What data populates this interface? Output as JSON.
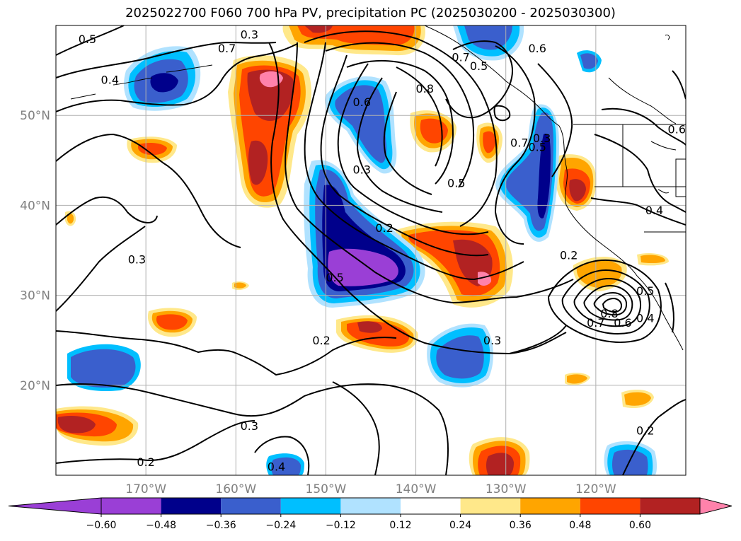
{
  "title": "2025022700 F060 700 hPa PV, precipitation PC (2025030200 - 2025030300)",
  "latitude_labels": [
    "50°N",
    "40°N",
    "30°N",
    "20°N"
  ],
  "longitude_labels": [
    "170°W",
    "160°W",
    "150°W",
    "140°W",
    "130°W",
    "120°W"
  ],
  "contour_labels": [
    {
      "text": "0.5",
      "lon": -176.5,
      "lat": 58.5
    },
    {
      "text": "0.3",
      "lon": -158.5,
      "lat": 59.0
    },
    {
      "text": "0.7",
      "lon": -161.0,
      "lat": 57.5
    },
    {
      "text": "0.4",
      "lon": -174.0,
      "lat": 54.0
    },
    {
      "text": "0.6",
      "lon": -146.0,
      "lat": 51.5
    },
    {
      "text": "0.8",
      "lon": -139.0,
      "lat": 53.0
    },
    {
      "text": "0.7",
      "lon": -135.0,
      "lat": 56.5
    },
    {
      "text": "0.5",
      "lon": -133.0,
      "lat": 55.5
    },
    {
      "text": "0.6",
      "lon": -126.5,
      "lat": 57.5
    },
    {
      "text": "0.7",
      "lon": -128.5,
      "lat": 47.0
    },
    {
      "text": "0.5",
      "lon": -126.5,
      "lat": 46.5
    },
    {
      "text": "0.5",
      "lon": -135.5,
      "lat": 42.5
    },
    {
      "text": "0.3",
      "lon": -146.0,
      "lat": 44.0
    },
    {
      "text": "0.2",
      "lon": -143.5,
      "lat": 37.5
    },
    {
      "text": "0.5",
      "lon": -149.0,
      "lat": 32.0
    },
    {
      "text": "0.3",
      "lon": -131.5,
      "lat": 25.0
    },
    {
      "text": "0.2",
      "lon": -150.5,
      "lat": 25.0
    },
    {
      "text": "0.3",
      "lon": -171.0,
      "lat": 34.0
    },
    {
      "text": "0.3",
      "lon": -158.5,
      "lat": 15.5
    },
    {
      "text": "0.2",
      "lon": -170.0,
      "lat": 11.5
    },
    {
      "text": "0.4",
      "lon": -155.5,
      "lat": 11.0
    },
    {
      "text": "0.2",
      "lon": -123.0,
      "lat": 34.5
    },
    {
      "text": "0.8",
      "lon": -118.5,
      "lat": 28.0
    },
    {
      "text": "0.7",
      "lon": -120.0,
      "lat": 27.0
    },
    {
      "text": "0.6",
      "lon": -117.0,
      "lat": 27.0
    },
    {
      "text": "0.5",
      "lon": -114.5,
      "lat": 30.5
    },
    {
      "text": "0.4",
      "lon": -114.5,
      "lat": 27.5
    },
    {
      "text": "0.6",
      "lon": -111.0,
      "lat": 48.5
    },
    {
      "text": "0.4",
      "lon": -113.5,
      "lat": 39.5
    },
    {
      "text": "0.3",
      "lon": -126.0,
      "lat": 47.5
    },
    {
      "text": "0.2",
      "lon": -114.5,
      "lat": 15.0
    }
  ],
  "colorbar": {
    "tick_labels": [
      "−0.60",
      "−0.48",
      "−0.36",
      "−0.24",
      "−0.12",
      "0.12",
      "0.24",
      "0.36",
      "0.48",
      "0.60"
    ],
    "levels": [
      -0.72,
      -0.6,
      -0.48,
      -0.36,
      -0.24,
      -0.12,
      0.12,
      0.24,
      0.36,
      0.48,
      0.6,
      0.72
    ],
    "colors": [
      "#9a3fd6",
      "#00008b",
      "#3a5fcd",
      "#00bfff",
      "#b0e2ff",
      "#ffffff",
      "#ffe88a",
      "#ffa500",
      "#ff4500",
      "#b22222",
      "#ff82ab"
    ],
    "extend": "both"
  },
  "map": {
    "lon_range": [
      -180,
      -110
    ],
    "lat_range": [
      10,
      60
    ],
    "gridlines": true,
    "contour_color": "#000000"
  }
}
